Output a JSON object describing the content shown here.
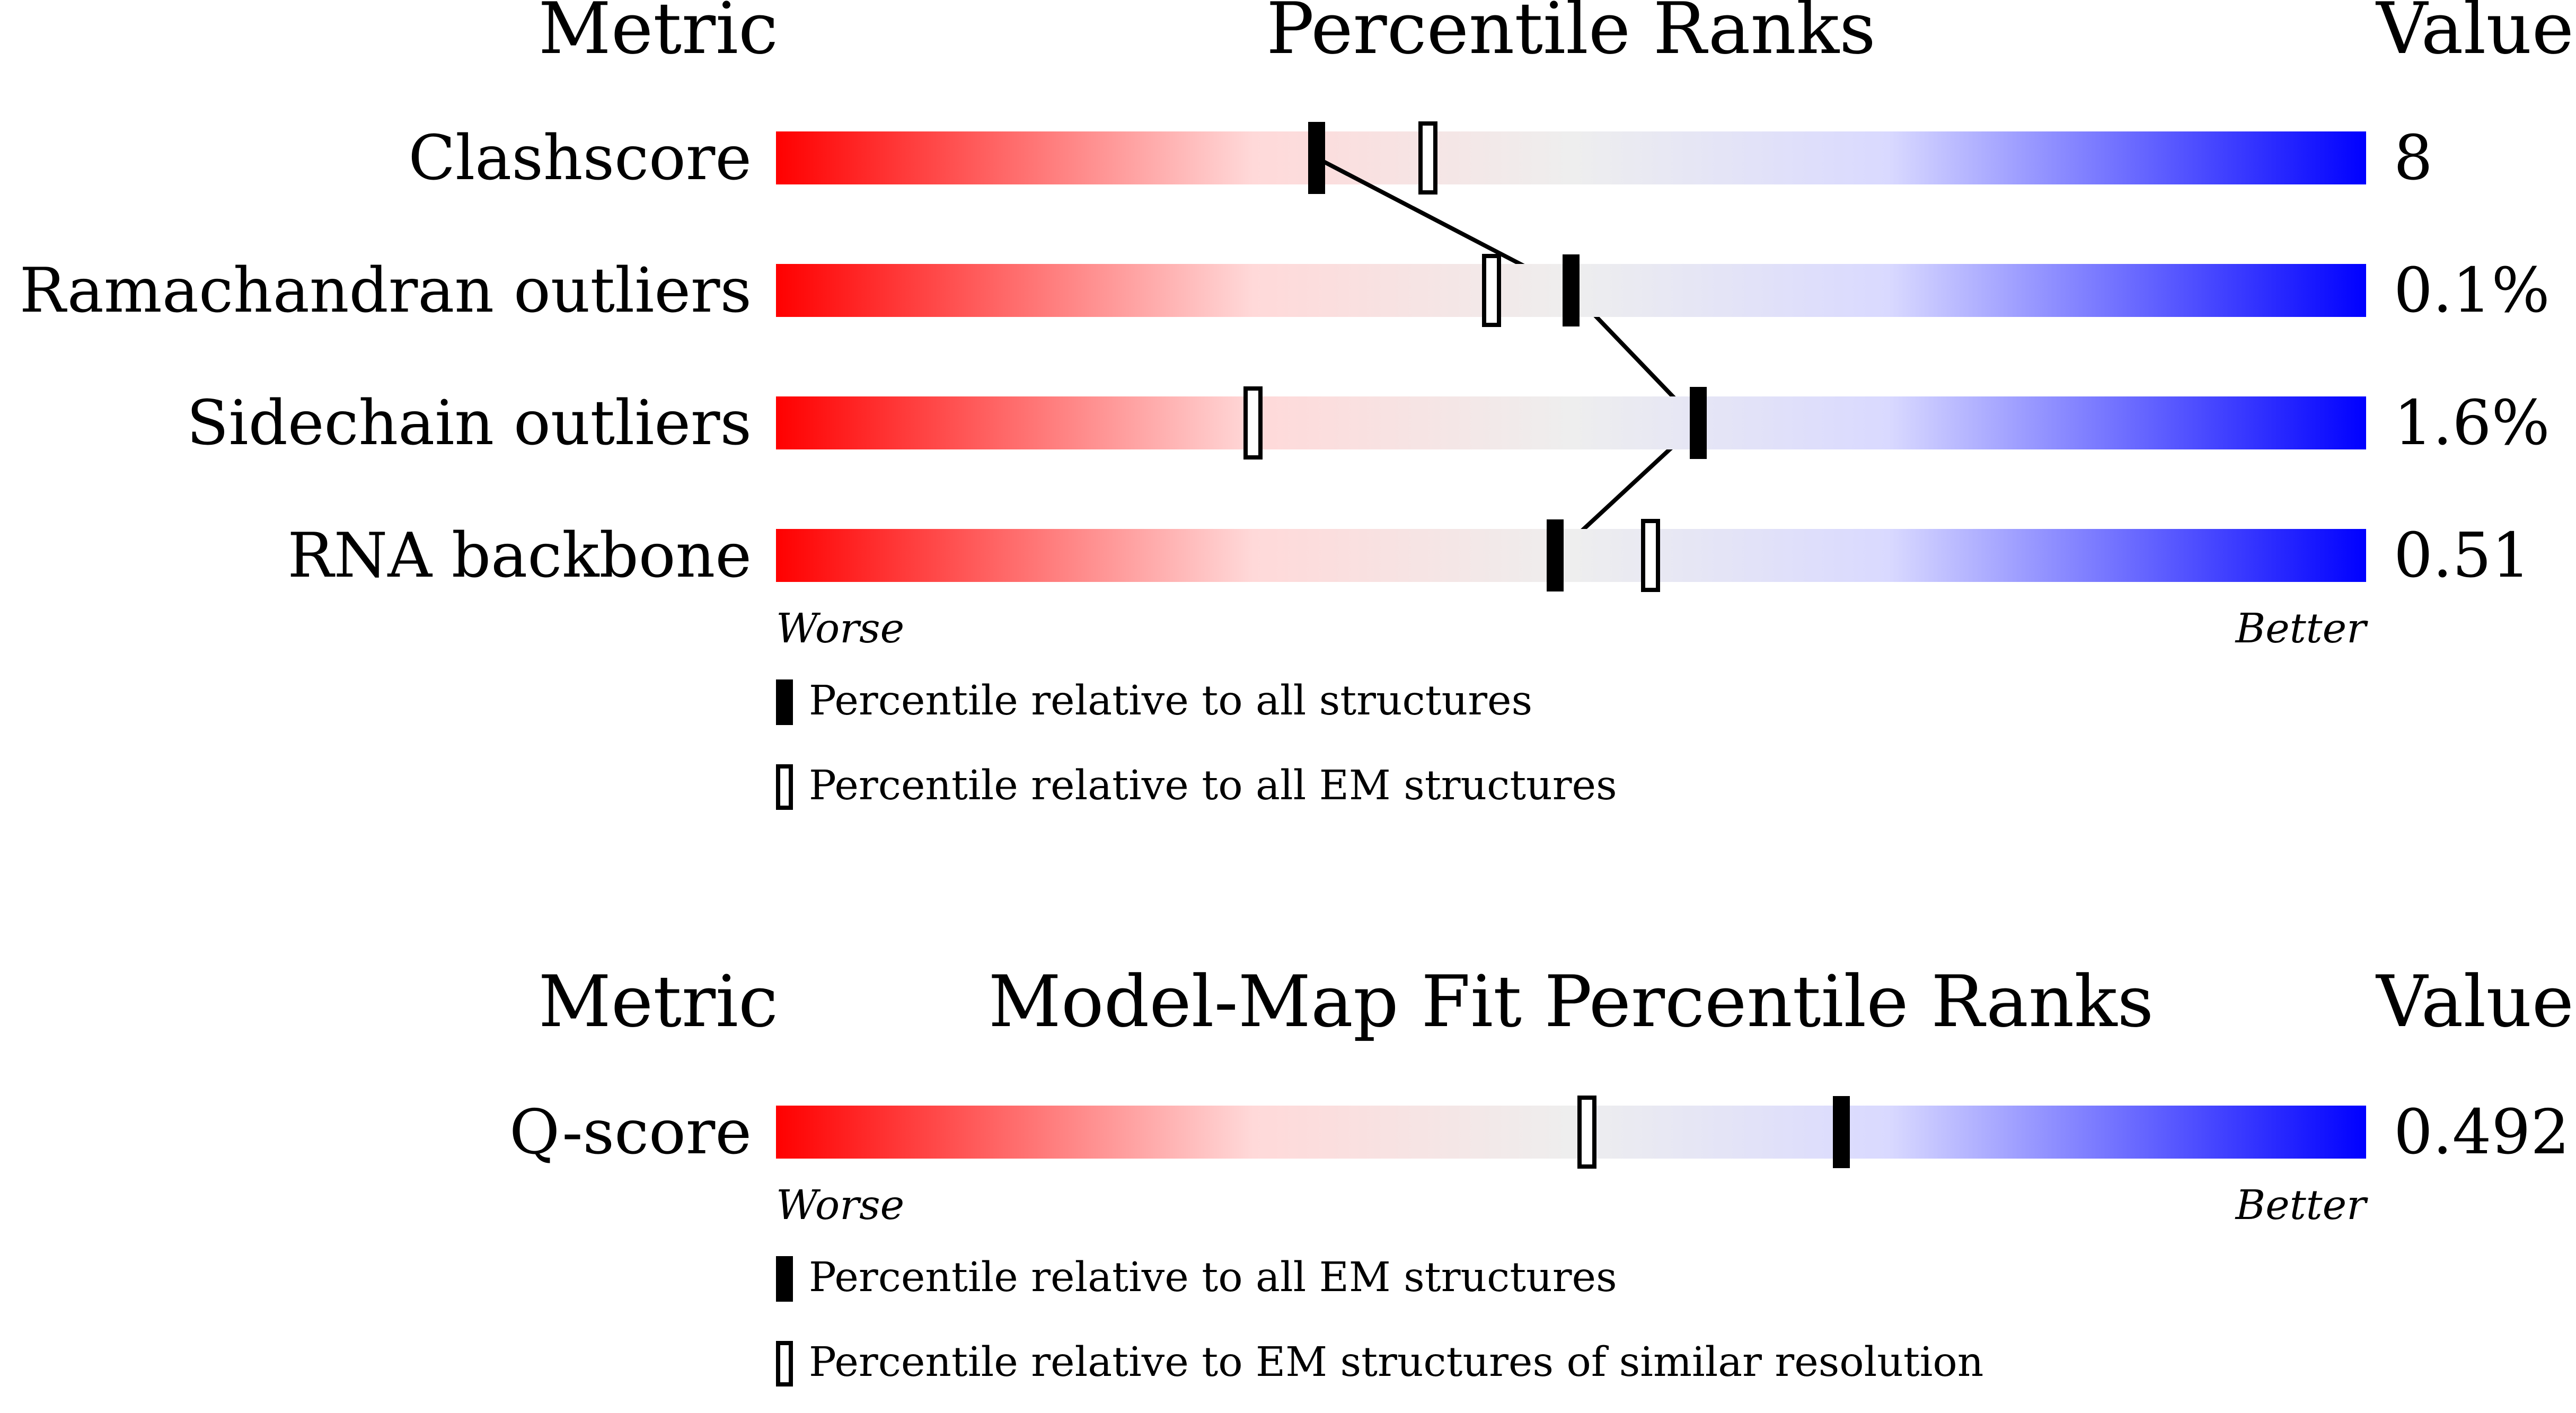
{
  "colors": {
    "worse": "#ff0000",
    "neutral": "#eeeeee",
    "better": "#0000ff",
    "marker": "#000000",
    "background": "#ffffff"
  },
  "chart_data": [
    {
      "type": "percentile-slider",
      "headers": {
        "metric": "Metric",
        "title": "Percentile Ranks",
        "value": "Value"
      },
      "axis": {
        "worse_label": "Worse",
        "better_label": "Better",
        "xlim": [
          0,
          100
        ]
      },
      "connect_filled_markers": true,
      "rows": [
        {
          "metric": "Clashscore",
          "value": "8",
          "percentile_all": 34,
          "percentile_em": 41
        },
        {
          "metric": "Ramachandran outliers",
          "value": "0.1%",
          "percentile_all": 50,
          "percentile_em": 45
        },
        {
          "metric": "Sidechain outliers",
          "value": "1.6%",
          "percentile_all": 58,
          "percentile_em": 30
        },
        {
          "metric": "RNA backbone",
          "value": "0.51",
          "percentile_all": 49,
          "percentile_em": 55
        }
      ],
      "legend": [
        {
          "marker": "filled",
          "label": "Percentile relative to all structures"
        },
        {
          "marker": "open",
          "label": "Percentile relative to all EM structures"
        }
      ]
    },
    {
      "type": "percentile-slider",
      "headers": {
        "metric": "Metric",
        "title": "Model-Map Fit Percentile Ranks",
        "value": "Value"
      },
      "axis": {
        "worse_label": "Worse",
        "better_label": "Better",
        "xlim": [
          0,
          100
        ]
      },
      "connect_filled_markers": false,
      "rows": [
        {
          "metric": "Q-score",
          "value": "0.492",
          "percentile_all": 67,
          "percentile_em": 51
        }
      ],
      "legend": [
        {
          "marker": "filled",
          "label": "Percentile relative to all EM structures"
        },
        {
          "marker": "open",
          "label": "Percentile relative to EM structures of similar resolution"
        }
      ]
    }
  ]
}
